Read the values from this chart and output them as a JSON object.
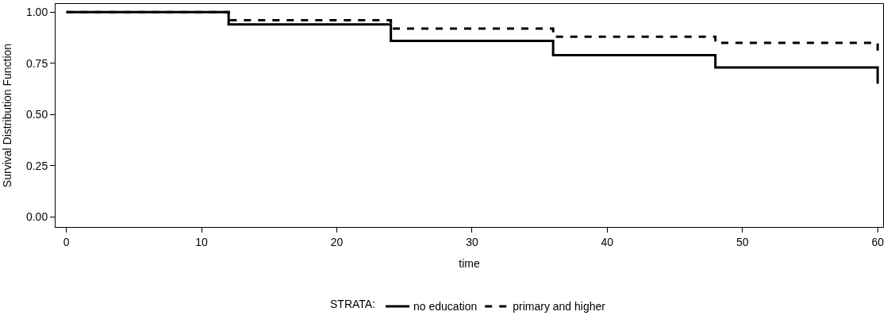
{
  "chart_data": {
    "type": "step",
    "xlabel": "time",
    "ylabel": "Survival Distribution Function",
    "legend_title": "STRATA:",
    "legend": "bottom",
    "marker": "none",
    "xlim": [
      -0.8,
      60.4
    ],
    "xticks": [
      0,
      10,
      20,
      30,
      40,
      50,
      60
    ],
    "ylim": [
      -0.05,
      1.04
    ],
    "yticks": [
      {
        "value": 0,
        "label": "0.00"
      },
      {
        "value": 0.25,
        "label": "0.25"
      },
      {
        "value": 0.5,
        "label": "0.50"
      },
      {
        "value": 0.75,
        "label": "0.75"
      },
      {
        "value": 1,
        "label": "1.00"
      }
    ],
    "series": [
      {
        "name": "no education",
        "color": "#000000",
        "line_style": "solid",
        "x": [
          0,
          12,
          24,
          36,
          48,
          60
        ],
        "values": [
          1.0,
          0.94,
          0.86,
          0.79,
          0.73,
          0.65
        ]
      },
      {
        "name": "primary and higher",
        "color": "#000000",
        "line_style": "dashed",
        "x": [
          0,
          12,
          24,
          36,
          48,
          60
        ],
        "values": [
          1.0,
          0.96,
          0.92,
          0.88,
          0.85,
          0.81
        ]
      }
    ]
  }
}
